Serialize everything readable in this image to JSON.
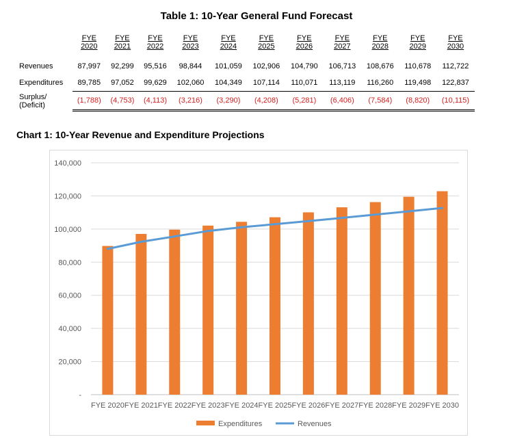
{
  "table": {
    "title": "Table 1: 10-Year General Fund Forecast",
    "headers": [
      {
        "line1": "FYE",
        "line2": "2020"
      },
      {
        "line1": "FYE",
        "line2": "2021"
      },
      {
        "line1": "FYE",
        "line2": "2022"
      },
      {
        "line1": "FYE",
        "line2": "2023"
      },
      {
        "line1": "FYE",
        "line2": "2024"
      },
      {
        "line1": "FYE",
        "line2": "2025"
      },
      {
        "line1": "FYE",
        "line2": "2026"
      },
      {
        "line1": "FYE",
        "line2": "2027"
      },
      {
        "line1": "FYE",
        "line2": "2028"
      },
      {
        "line1": "FYE",
        "line2": "2029"
      },
      {
        "line1": "FYE",
        "line2": "2030"
      }
    ],
    "rows": [
      {
        "label": "Revenues",
        "values": [
          "87,997",
          "92,299",
          "95,516",
          "98,844",
          "101,059",
          "102,906",
          "104,790",
          "106,713",
          "108,676",
          "110,678",
          "112,722"
        ]
      },
      {
        "label": "Expenditures",
        "values": [
          "89,785",
          "97,052",
          "99,629",
          "102,060",
          "104,349",
          "107,114",
          "110,071",
          "113,119",
          "116,260",
          "119,498",
          "122,837"
        ]
      },
      {
        "label_line1": "Surplus/",
        "label_line2": "(Deficit)",
        "values": [
          "(1,788)",
          "(4,753)",
          "(4,113)",
          "(3,216)",
          "(3,290)",
          "(4,208)",
          "(5,281)",
          "(6,406)",
          "(7,584)",
          "(8,820)",
          "(10,115)"
        ]
      }
    ],
    "deficit_color": "#d42020"
  },
  "chart_heading": "Chart 1: 10-Year Revenue and Expenditure Projections",
  "chart_data": {
    "type": "bar",
    "categories": [
      "FYE 2020",
      "FYE 2021",
      "FYE 2022",
      "FYE 2023",
      "FYE 2024",
      "FYE 2025",
      "FYE 2026",
      "FYE 2027",
      "FYE 2028",
      "FYE 2029",
      "FYE 2030"
    ],
    "series": [
      {
        "name": "Expenditures",
        "type": "bar",
        "color": "#ed7d31",
        "values": [
          89785,
          97052,
          99629,
          102060,
          104349,
          107114,
          110071,
          113119,
          116260,
          119498,
          122837
        ]
      },
      {
        "name": "Revenues",
        "type": "line",
        "color": "#5b9bd5",
        "values": [
          87997,
          92299,
          95516,
          98844,
          101059,
          102906,
          104790,
          106713,
          108676,
          110678,
          112722
        ]
      }
    ],
    "ylim": [
      0,
      140000
    ],
    "yticks": [
      0,
      20000,
      40000,
      60000,
      80000,
      100000,
      120000,
      140000
    ],
    "ytick_labels": [
      "-",
      "20,000",
      "40,000",
      "60,000",
      "80,000",
      "100,000",
      "120,000",
      "140,000"
    ],
    "grid": true,
    "legend_position": "bottom"
  }
}
